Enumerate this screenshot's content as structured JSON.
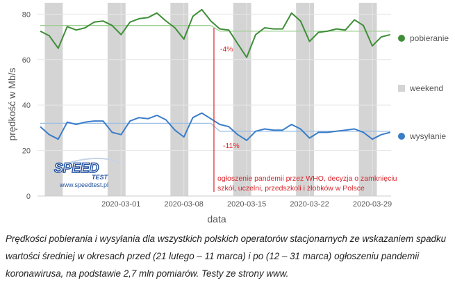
{
  "chart_data": {
    "type": "line",
    "xlabel": "data",
    "ylabel": "prędkość w Mb/s",
    "ylim": [
      0,
      85
    ],
    "yticks": [
      0,
      20,
      40,
      60,
      80
    ],
    "x_start": "2020-02-21",
    "x_tick_labels": [
      "2020-03-01",
      "2020-03-08",
      "2020-03-15",
      "2020-03-22",
      "2020-03-29"
    ],
    "grid": true,
    "legend_position": "right",
    "weekend_dates": [
      "2020-02-22",
      "2020-02-23",
      "2020-02-29",
      "2020-03-01",
      "2020-03-07",
      "2020-03-08",
      "2020-03-14",
      "2020-03-15",
      "2020-03-21",
      "2020-03-22",
      "2020-03-28",
      "2020-03-29"
    ],
    "series": [
      {
        "name": "pobieranie",
        "color": "#3e8e37",
        "values": [
          72.5,
          70.5,
          65,
          74.5,
          73,
          74,
          76.5,
          77,
          75,
          71,
          76.5,
          78,
          78.5,
          80.5,
          77,
          74,
          69,
          79,
          82,
          77,
          73.5,
          73,
          67,
          61,
          71,
          74,
          73.5,
          73.5,
          80.5,
          77,
          68,
          72,
          72.5,
          73.5,
          73,
          77.5,
          75,
          66,
          70,
          71
        ]
      },
      {
        "name": "wysyłanie",
        "color": "#3a7dc9",
        "values": [
          30.5,
          27,
          25,
          32.5,
          31.5,
          32.5,
          33,
          33,
          28,
          27,
          33,
          34.5,
          34,
          35.5,
          33.5,
          29,
          26,
          34.5,
          36.5,
          34,
          31.5,
          30.5,
          27,
          24.5,
          28.5,
          29.5,
          29,
          29,
          31.5,
          29.5,
          25.5,
          28,
          28,
          28.5,
          29,
          29.5,
          28,
          25,
          27,
          28
        ]
      }
    ],
    "averages": [
      {
        "series": "pobieranie",
        "before": 75,
        "after": 72.5,
        "color": "#9fcf94"
      },
      {
        "series": "wysyłanie",
        "before": 32,
        "after": 28.5,
        "color": "#9dc0e6"
      }
    ],
    "announcement_date": "2020-03-11",
    "legend": {
      "download": "pobieranie",
      "weekend": "weekend",
      "upload": "wysyłanie"
    },
    "annotations": {
      "download_drop": "-4%",
      "upload_drop": "-11%",
      "event_line1": "ogłoszenie pandemii przez WHO, decyzja o zamknięciu",
      "event_line2": "szkół, uczelni, przedszkoli i żłobków w Polsce"
    },
    "logo": {
      "word1": "SPEED",
      "word2": "TEST",
      "url": "www.speedtest.pl"
    }
  },
  "caption": "Prędkości pobierania i wysyłania dla wszystkich polskich operatorów stacjonarnych ze wskazaniem spadku wartości średniej w okresach przed (21 lutego – 11 marca) i po (12 – 31 marca) ogłoszeniu pandemii koronawirusa, na podstawie 2,7 mln pomiarów. Testy ze strony www."
}
